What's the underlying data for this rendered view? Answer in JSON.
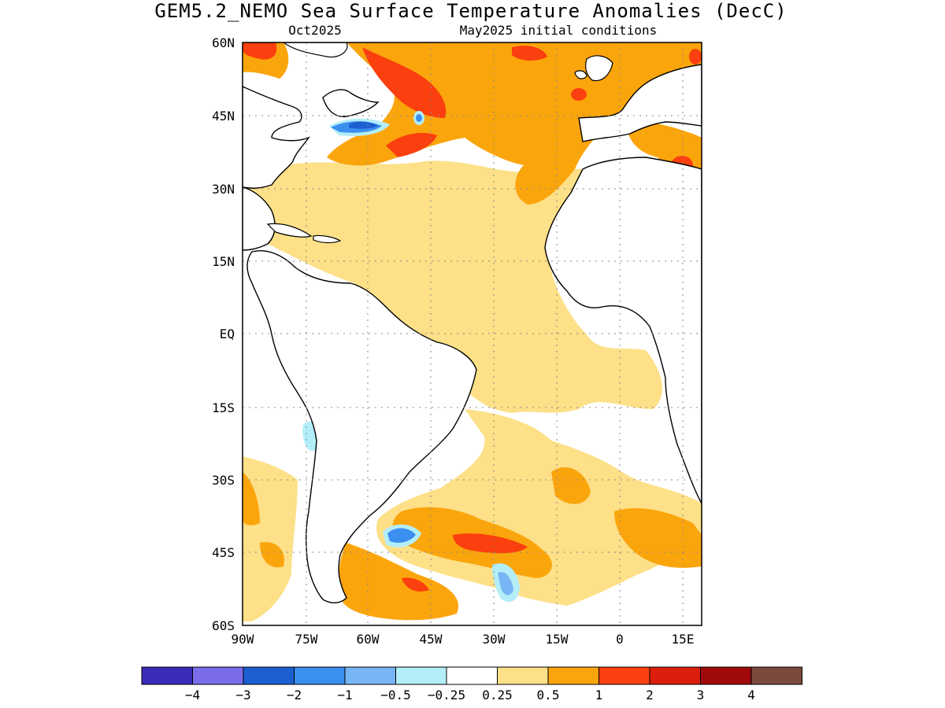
{
  "title": "GEM5.2_NEMO Sea Surface Temperature Anomalies (DecC)",
  "subtitle_left": "Oct2025",
  "subtitle_right": "May2025 initial conditions",
  "y_ticks": [
    "60N",
    "45N",
    "30N",
    "15N",
    "EQ",
    "15S",
    "30S",
    "45S",
    "60S"
  ],
  "x_ticks": [
    "90W",
    "75W",
    "60W",
    "45W",
    "30W",
    "15W",
    "0",
    "15E"
  ],
  "colorbar": {
    "colors": [
      "#3a2bb8",
      "#7b6cea",
      "#1b5fd1",
      "#3b8fef",
      "#78b5f4",
      "#b3eef8",
      "#ffffff",
      "#fde088",
      "#fba50d",
      "#fb3f0e",
      "#db1f0c",
      "#a00a0a",
      "#7a4a3d"
    ],
    "labels": [
      "−4",
      "−3",
      "−2",
      "−1",
      "−0.5",
      "−0.25",
      "0.25",
      "0.5",
      "1",
      "2",
      "3",
      "4"
    ]
  },
  "colors": {
    "land": "#ffffff",
    "coast": "#000000",
    "grid": "#888888"
  }
}
